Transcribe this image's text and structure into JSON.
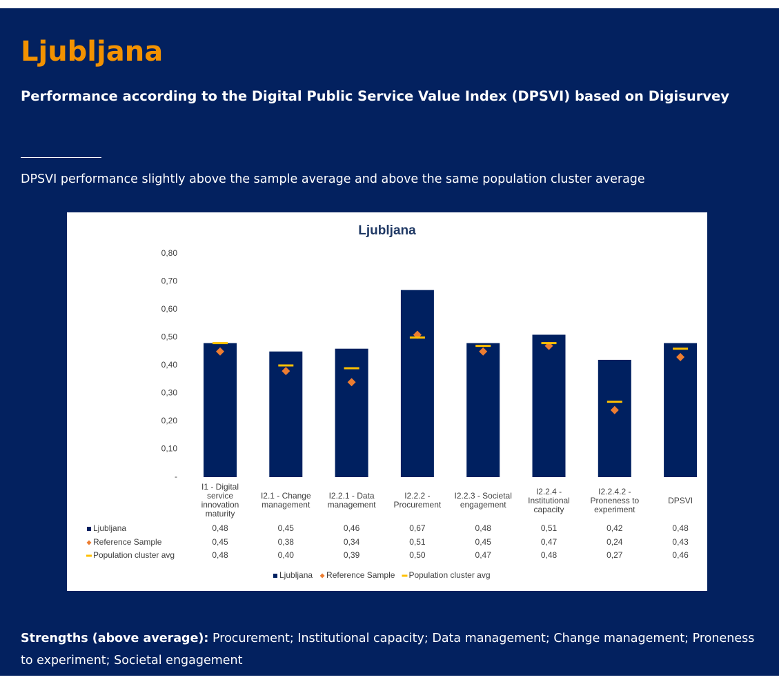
{
  "header": {
    "title": "Ljubljana",
    "subtitle": "Performance according to the Digital Public Service Value Index (DPSVI) based on Digisurvey"
  },
  "summary": "DPSVI performance slightly above the sample average and above the same population cluster average",
  "chart_data": {
    "type": "bar",
    "title": "Ljubljana",
    "categories": [
      "I1 - Digital service innovation maturity",
      "I2.1 - Change management",
      "I2.2.1 - Data management",
      "I2.2.2 - Procurement",
      "I2.2.3 - Societal engagement",
      "I2.2.4 - Institutional capacity",
      "I2.2.4.2 - Proneness to experiment",
      "DPSVI"
    ],
    "series": [
      {
        "name": "Ljubljana",
        "marker": "bar",
        "color": "#002060",
        "values": [
          0.48,
          0.45,
          0.46,
          0.67,
          0.48,
          0.51,
          0.42,
          0.48
        ],
        "value_labels": [
          "0,48",
          "0,45",
          "0,46",
          "0,67",
          "0,48",
          "0,51",
          "0,42",
          "0,48"
        ]
      },
      {
        "name": "Reference Sample",
        "marker": "diamond",
        "color": "#ed7d31",
        "values": [
          0.45,
          0.38,
          0.34,
          0.51,
          0.45,
          0.47,
          0.24,
          0.43
        ],
        "value_labels": [
          "0,45",
          "0,38",
          "0,34",
          "0,51",
          "0,45",
          "0,47",
          "0,24",
          "0,43"
        ]
      },
      {
        "name": "Population cluster avg",
        "marker": "dash",
        "color": "#ffc000",
        "values": [
          0.48,
          0.4,
          0.39,
          0.5,
          0.47,
          0.48,
          0.27,
          0.46
        ],
        "value_labels": [
          "0,48",
          "0,40",
          "0,39",
          "0,50",
          "0,47",
          "0,48",
          "0,27",
          "0,46"
        ]
      }
    ],
    "ylim": [
      0,
      0.8
    ],
    "yticks": [
      {
        "value": 0,
        "label": "-"
      },
      {
        "value": 0.1,
        "label": "0,10"
      },
      {
        "value": 0.2,
        "label": "0,20"
      },
      {
        "value": 0.3,
        "label": "0,30"
      },
      {
        "value": 0.4,
        "label": "0,40"
      },
      {
        "value": 0.5,
        "label": "0,50"
      },
      {
        "value": 0.6,
        "label": "0,60"
      },
      {
        "value": 0.7,
        "label": "0,70"
      },
      {
        "value": 0.8,
        "label": "0,80"
      }
    ],
    "grid": false,
    "legend": "bottom"
  },
  "strengths": {
    "label": "Strengths (above average):",
    "text": "Procurement; Institutional capacity; Data management; Change management; Proneness to experiment; Societal engagement"
  }
}
